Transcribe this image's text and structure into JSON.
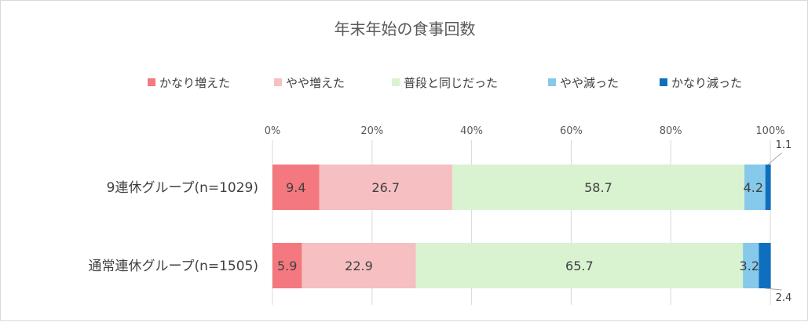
{
  "chart_data": {
    "type": "bar",
    "orientation": "horizontal",
    "stacked": true,
    "title": "年末年始の食事回数",
    "categories": [
      "9連休グループ(n=1029)",
      "通常連休グループ(n=1505)"
    ],
    "series": [
      {
        "name": "かなり増えた",
        "color": "#f4787f",
        "values": [
          9.4,
          5.9
        ],
        "labels": [
          "9.4",
          "5.9"
        ]
      },
      {
        "name": "やや増えた",
        "color": "#f6bfc1",
        "values": [
          26.7,
          22.9
        ],
        "labels": [
          "26.7",
          "22.9"
        ]
      },
      {
        "name": "普段と同じだった",
        "color": "#d9f2d0",
        "values": [
          58.7,
          65.7
        ],
        "labels": [
          "58.7",
          "65.7"
        ]
      },
      {
        "name": "やや減った",
        "color": "#86c9ea",
        "values": [
          4.2,
          3.2
        ],
        "labels": [
          "4.2",
          "3.2"
        ]
      },
      {
        "name": "かなり減った",
        "color": "#0f6fbe",
        "values": [
          1.1,
          2.4
        ],
        "labels": [
          "1.1",
          "2.4"
        ]
      }
    ],
    "x_ticks": [
      "0%",
      "20%",
      "40%",
      "60%",
      "80%",
      "100%"
    ],
    "xlim": [
      0,
      100
    ],
    "grid": true,
    "legend_position": "top"
  }
}
